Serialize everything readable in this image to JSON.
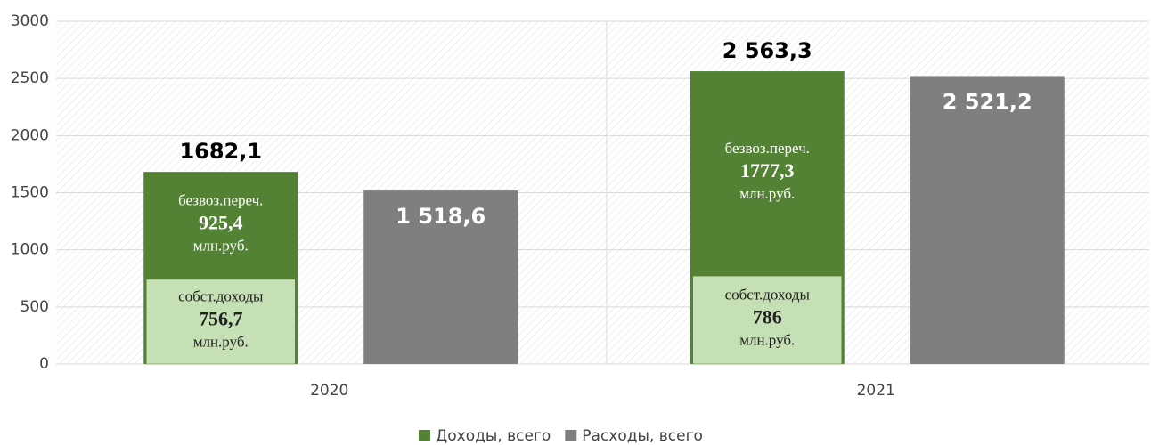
{
  "chart_data": {
    "type": "bar",
    "categories": [
      "2020",
      "2021"
    ],
    "series": [
      {
        "name": "Доходы, всего",
        "color": "#548235",
        "values": [
          1682.1,
          2563.3
        ],
        "value_labels": [
          "1682,1",
          "2 563,3"
        ]
      },
      {
        "name": "Расходы, всего",
        "color": "#7f7f7f",
        "values": [
          1518.6,
          2521.2
        ],
        "value_labels": [
          "1 518,6",
          "2 521,2"
        ]
      }
    ],
    "breakdown": [
      {
        "name": "собст.доходы",
        "color": "#c5e0b4",
        "values": [
          756.7,
          786
        ],
        "value_labels": [
          "756,7",
          "786"
        ],
        "unit": "млн.руб."
      },
      {
        "name": "безвоз.переч.",
        "color": "#548235",
        "values": [
          925.4,
          1777.3
        ],
        "value_labels": [
          "925,4",
          "1777,3"
        ],
        "unit": "млн.руб."
      }
    ],
    "ylim": [
      0,
      3000
    ],
    "yticks": [
      0,
      500,
      1000,
      1500,
      2000,
      2500,
      3000
    ],
    "grid": true,
    "legend": "bottom"
  }
}
